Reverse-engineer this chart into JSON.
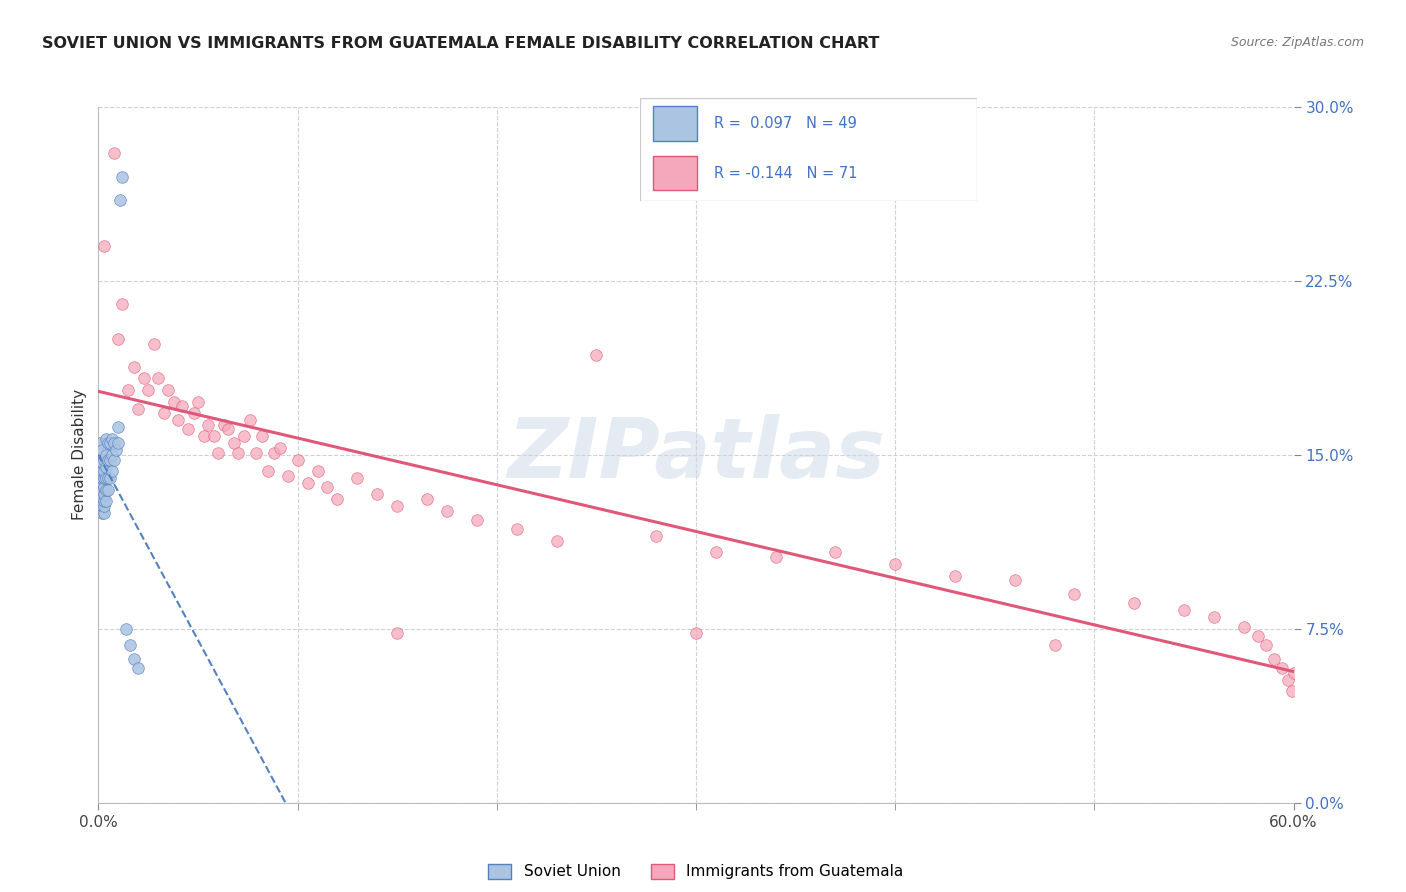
{
  "title": "SOVIET UNION VS IMMIGRANTS FROM GUATEMALA FEMALE DISABILITY CORRELATION CHART",
  "source": "Source: ZipAtlas.com",
  "ylabel_label": "Female Disability",
  "x_min": 0.0,
  "x_max": 0.6,
  "y_min": 0.0,
  "y_max": 0.3,
  "x_tick_positions": [
    0.0,
    0.6
  ],
  "x_tick_labels": [
    "0.0%",
    "60.0%"
  ],
  "y_ticks": [
    0.0,
    0.075,
    0.15,
    0.225,
    0.3
  ],
  "y_tick_labels": [
    "0.0%",
    "7.5%",
    "15.0%",
    "22.5%",
    "30.0%"
  ],
  "legend_r1": "R =  0.097",
  "legend_n1": "N = 49",
  "legend_r2": "R = -0.144",
  "legend_n2": "N = 71",
  "color_soviet": "#aac4e2",
  "color_guatemala": "#f5a8bc",
  "color_soviet_line": "#5580c0",
  "color_guatemala_line": "#e05878",
  "watermark_color": "#d0dce8",
  "soviet_x": [
    0.001,
    0.001,
    0.001,
    0.001,
    0.001,
    0.002,
    0.002,
    0.002,
    0.002,
    0.002,
    0.002,
    0.002,
    0.002,
    0.002,
    0.003,
    0.003,
    0.003,
    0.003,
    0.003,
    0.003,
    0.003,
    0.003,
    0.004,
    0.004,
    0.004,
    0.004,
    0.004,
    0.004,
    0.005,
    0.005,
    0.005,
    0.005,
    0.006,
    0.006,
    0.006,
    0.007,
    0.007,
    0.007,
    0.008,
    0.008,
    0.009,
    0.01,
    0.01,
    0.011,
    0.012,
    0.014,
    0.016,
    0.018,
    0.02
  ],
  "soviet_y": [
    0.13,
    0.135,
    0.14,
    0.148,
    0.155,
    0.125,
    0.128,
    0.132,
    0.135,
    0.138,
    0.14,
    0.143,
    0.147,
    0.152,
    0.125,
    0.128,
    0.13,
    0.133,
    0.136,
    0.14,
    0.143,
    0.148,
    0.13,
    0.135,
    0.14,
    0.145,
    0.15,
    0.157,
    0.135,
    0.14,
    0.148,
    0.155,
    0.14,
    0.148,
    0.155,
    0.143,
    0.15,
    0.157,
    0.148,
    0.155,
    0.152,
    0.155,
    0.162,
    0.26,
    0.27,
    0.075,
    0.068,
    0.062,
    0.058
  ],
  "guatemala_x": [
    0.003,
    0.008,
    0.01,
    0.012,
    0.015,
    0.018,
    0.02,
    0.023,
    0.025,
    0.028,
    0.03,
    0.033,
    0.035,
    0.038,
    0.04,
    0.042,
    0.045,
    0.048,
    0.05,
    0.053,
    0.055,
    0.058,
    0.06,
    0.063,
    0.065,
    0.068,
    0.07,
    0.073,
    0.076,
    0.079,
    0.082,
    0.085,
    0.088,
    0.091,
    0.095,
    0.1,
    0.105,
    0.11,
    0.115,
    0.12,
    0.13,
    0.14,
    0.15,
    0.165,
    0.175,
    0.19,
    0.21,
    0.23,
    0.25,
    0.28,
    0.31,
    0.34,
    0.37,
    0.4,
    0.43,
    0.46,
    0.49,
    0.52,
    0.545,
    0.56,
    0.575,
    0.582,
    0.586,
    0.59,
    0.594,
    0.597,
    0.599,
    0.6,
    0.3,
    0.48,
    0.15
  ],
  "guatemala_y": [
    0.24,
    0.28,
    0.2,
    0.215,
    0.178,
    0.188,
    0.17,
    0.183,
    0.178,
    0.198,
    0.183,
    0.168,
    0.178,
    0.173,
    0.165,
    0.171,
    0.161,
    0.168,
    0.173,
    0.158,
    0.163,
    0.158,
    0.151,
    0.163,
    0.161,
    0.155,
    0.151,
    0.158,
    0.165,
    0.151,
    0.158,
    0.143,
    0.151,
    0.153,
    0.141,
    0.148,
    0.138,
    0.143,
    0.136,
    0.131,
    0.14,
    0.133,
    0.128,
    0.131,
    0.126,
    0.122,
    0.118,
    0.113,
    0.193,
    0.115,
    0.108,
    0.106,
    0.108,
    0.103,
    0.098,
    0.096,
    0.09,
    0.086,
    0.083,
    0.08,
    0.076,
    0.072,
    0.068,
    0.062,
    0.058,
    0.053,
    0.048,
    0.056,
    0.073,
    0.068,
    0.073
  ]
}
